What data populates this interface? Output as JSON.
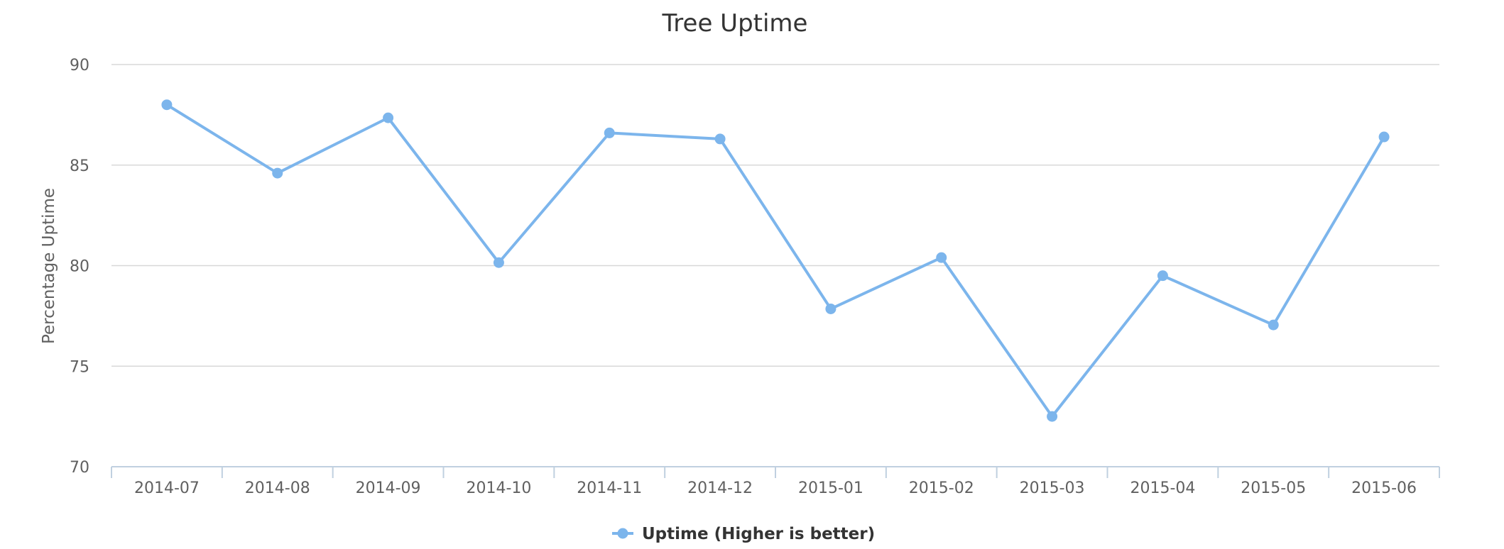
{
  "chart_data": {
    "type": "line",
    "title": "Tree Uptime",
    "xlabel": "",
    "ylabel": "Percentage Uptime",
    "categories": [
      "2014-07",
      "2014-08",
      "2014-09",
      "2014-10",
      "2014-11",
      "2014-12",
      "2015-01",
      "2015-02",
      "2015-03",
      "2015-04",
      "2015-05",
      "2015-06"
    ],
    "series": [
      {
        "name": "Uptime (Higher is better)",
        "color": "#7cb5ec",
        "values": [
          88.0,
          84.6,
          87.35,
          80.15,
          86.6,
          86.3,
          77.85,
          80.4,
          72.5,
          79.5,
          77.05,
          86.4
        ]
      }
    ],
    "ylim": [
      70,
      90
    ],
    "yticks": [
      "70",
      "75",
      "80",
      "85",
      "90"
    ],
    "grid": true,
    "legend": "bottom-center"
  }
}
